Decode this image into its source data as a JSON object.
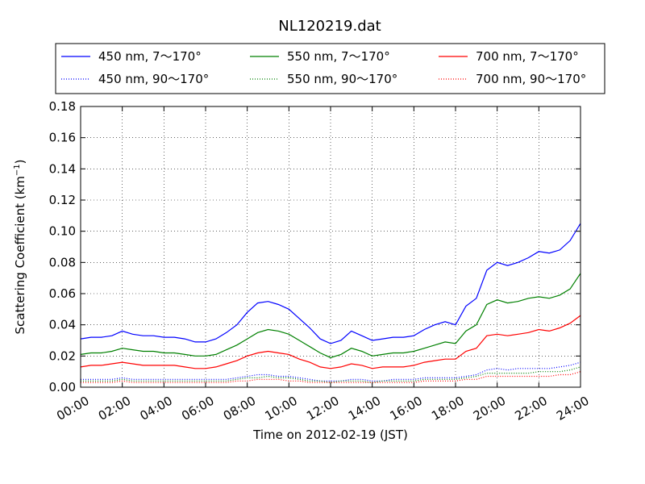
{
  "chart_data": {
    "type": "line",
    "title": "NL120219.dat",
    "xlabel": "Time on 2012-02-19 (JST)",
    "ylabel_main": "Scattering Coefficient (km",
    "ylabel_sup": "−1",
    "ylabel_close": ")",
    "xlim": [
      0,
      24
    ],
    "ylim": [
      0,
      0.18
    ],
    "xticks": [
      0,
      2,
      4,
      6,
      8,
      10,
      12,
      14,
      16,
      18,
      20,
      22,
      24
    ],
    "xtick_labels": [
      "00:00",
      "02:00",
      "04:00",
      "06:00",
      "08:00",
      "10:00",
      "12:00",
      "14:00",
      "16:00",
      "18:00",
      "20:00",
      "22:00",
      "24:00"
    ],
    "yticks": [
      0,
      0.02,
      0.04,
      0.06,
      0.08,
      0.1,
      0.12,
      0.14,
      0.16,
      0.18
    ],
    "ytick_labels": [
      "0.00",
      "0.02",
      "0.04",
      "0.06",
      "0.08",
      "0.10",
      "0.12",
      "0.14",
      "0.16",
      "0.18"
    ],
    "grid": true,
    "legend_position": "top",
    "x": [
      0,
      0.5,
      1,
      1.5,
      2,
      2.5,
      3,
      3.5,
      4,
      4.5,
      5,
      5.5,
      6,
      6.5,
      7,
      7.5,
      8,
      8.5,
      9,
      9.5,
      10,
      10.5,
      11,
      11.5,
      12,
      12.5,
      13,
      13.5,
      14,
      14.5,
      15,
      15.5,
      16,
      16.5,
      17,
      17.5,
      18,
      18.5,
      19,
      19.5,
      20,
      20.5,
      21,
      21.5,
      22,
      22.5,
      23,
      23.5,
      24
    ],
    "series": [
      {
        "name": "450 nm, 7～170°",
        "color": "#0000ff",
        "style": "solid",
        "values": [
          0.031,
          0.032,
          0.032,
          0.033,
          0.036,
          0.034,
          0.033,
          0.033,
          0.032,
          0.032,
          0.031,
          0.029,
          0.029,
          0.031,
          0.035,
          0.04,
          0.048,
          0.054,
          0.055,
          0.053,
          0.05,
          0.044,
          0.038,
          0.031,
          0.028,
          0.03,
          0.036,
          0.033,
          0.03,
          0.031,
          0.032,
          0.032,
          0.033,
          0.037,
          0.04,
          0.042,
          0.04,
          0.052,
          0.057,
          0.075,
          0.08,
          0.078,
          0.08,
          0.083,
          0.087,
          0.086,
          0.088,
          0.094,
          0.105
        ]
      },
      {
        "name": "550 nm, 7～170°",
        "color": "#008000",
        "style": "solid",
        "values": [
          0.021,
          0.022,
          0.022,
          0.023,
          0.025,
          0.024,
          0.023,
          0.023,
          0.022,
          0.022,
          0.021,
          0.02,
          0.02,
          0.021,
          0.024,
          0.027,
          0.031,
          0.035,
          0.037,
          0.036,
          0.034,
          0.03,
          0.026,
          0.022,
          0.019,
          0.021,
          0.025,
          0.023,
          0.02,
          0.021,
          0.022,
          0.022,
          0.023,
          0.025,
          0.027,
          0.029,
          0.028,
          0.036,
          0.04,
          0.053,
          0.056,
          0.054,
          0.055,
          0.057,
          0.058,
          0.057,
          0.059,
          0.063,
          0.073
        ]
      },
      {
        "name": "700 nm, 7～170°",
        "color": "#ff0000",
        "style": "solid",
        "values": [
          0.013,
          0.014,
          0.014,
          0.015,
          0.016,
          0.015,
          0.014,
          0.014,
          0.014,
          0.014,
          0.013,
          0.012,
          0.012,
          0.013,
          0.015,
          0.017,
          0.02,
          0.022,
          0.023,
          0.022,
          0.021,
          0.018,
          0.016,
          0.013,
          0.012,
          0.013,
          0.015,
          0.014,
          0.012,
          0.013,
          0.013,
          0.013,
          0.014,
          0.016,
          0.017,
          0.018,
          0.018,
          0.023,
          0.025,
          0.033,
          0.034,
          0.033,
          0.034,
          0.035,
          0.037,
          0.036,
          0.038,
          0.041,
          0.046
        ]
      },
      {
        "name": "450 nm, 90～170°",
        "color": "#0000ff",
        "style": "dotted",
        "values": [
          0.005,
          0.005,
          0.005,
          0.005,
          0.006,
          0.005,
          0.005,
          0.005,
          0.005,
          0.005,
          0.005,
          0.005,
          0.005,
          0.005,
          0.005,
          0.006,
          0.007,
          0.008,
          0.008,
          0.007,
          0.007,
          0.006,
          0.005,
          0.004,
          0.004,
          0.004,
          0.005,
          0.005,
          0.004,
          0.004,
          0.005,
          0.005,
          0.005,
          0.006,
          0.006,
          0.006,
          0.006,
          0.007,
          0.008,
          0.011,
          0.012,
          0.011,
          0.012,
          0.012,
          0.012,
          0.012,
          0.013,
          0.014,
          0.016
        ]
      },
      {
        "name": "550 nm, 90～170°",
        "color": "#008000",
        "style": "dotted",
        "values": [
          0.004,
          0.004,
          0.004,
          0.004,
          0.005,
          0.004,
          0.004,
          0.004,
          0.004,
          0.004,
          0.004,
          0.004,
          0.004,
          0.004,
          0.004,
          0.005,
          0.006,
          0.006,
          0.007,
          0.006,
          0.006,
          0.005,
          0.004,
          0.004,
          0.003,
          0.004,
          0.004,
          0.004,
          0.003,
          0.004,
          0.004,
          0.004,
          0.004,
          0.005,
          0.005,
          0.005,
          0.005,
          0.006,
          0.007,
          0.009,
          0.009,
          0.009,
          0.009,
          0.009,
          0.01,
          0.01,
          0.01,
          0.011,
          0.013
        ]
      },
      {
        "name": "700 nm, 90～170°",
        "color": "#ff0000",
        "style": "dotted",
        "values": [
          0.003,
          0.003,
          0.003,
          0.003,
          0.004,
          0.003,
          0.003,
          0.003,
          0.003,
          0.003,
          0.003,
          0.003,
          0.003,
          0.003,
          0.003,
          0.004,
          0.004,
          0.005,
          0.005,
          0.005,
          0.004,
          0.004,
          0.003,
          0.003,
          0.003,
          0.003,
          0.003,
          0.003,
          0.003,
          0.003,
          0.003,
          0.003,
          0.003,
          0.004,
          0.004,
          0.004,
          0.004,
          0.005,
          0.005,
          0.007,
          0.007,
          0.007,
          0.007,
          0.007,
          0.007,
          0.007,
          0.008,
          0.008,
          0.01
        ]
      }
    ]
  }
}
